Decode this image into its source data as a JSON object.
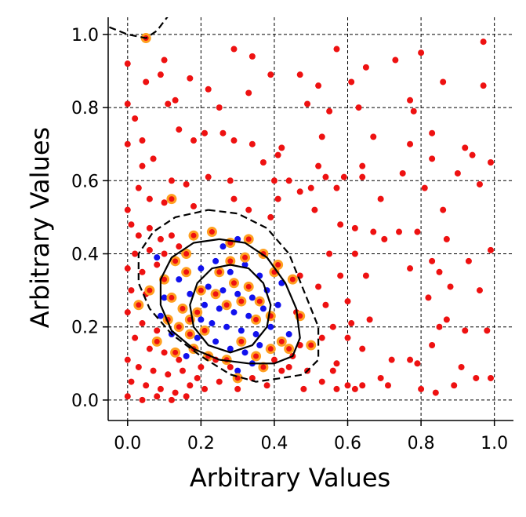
{
  "chart_data": {
    "type": "scatter",
    "xlabel": "Arbitrary Values",
    "ylabel": "Arbitrary Values",
    "xlim": [
      -0.053,
      1.052
    ],
    "ylim": [
      -0.056,
      1.047
    ],
    "xticks": [
      {
        "value": 0,
        "label": "0.0"
      },
      {
        "value": 0.2,
        "label": "0.2"
      },
      {
        "value": 0.4,
        "label": "0.4"
      },
      {
        "value": 0.6,
        "label": "0.6"
      },
      {
        "value": 0.8,
        "label": "0.8"
      },
      {
        "value": 1,
        "label": "1.0"
      }
    ],
    "yticks": [
      {
        "value": 0,
        "label": "0.0"
      },
      {
        "value": 0.2,
        "label": "0.2"
      },
      {
        "value": 0.4,
        "label": "0.4"
      },
      {
        "value": 0.6,
        "label": "0.6"
      },
      {
        "value": 0.8,
        "label": "0.8"
      },
      {
        "value": 1,
        "label": "1.0"
      }
    ],
    "grid": true,
    "series": [
      {
        "color": "#ee1111",
        "x": [
          0.05,
          0.1,
          0.0,
          0.09,
          0.05,
          0.17,
          0.29,
          0.34,
          0.39,
          0.47,
          0.57,
          0.52,
          0.55,
          0.49,
          0.61,
          0.73,
          0.77,
          0.8,
          0.86,
          0.97,
          0.97,
          0.78,
          0.65,
          0.63,
          0.0,
          0.02,
          0.11,
          0.13,
          0.22,
          0.33,
          0.25,
          0.14,
          0.21,
          0.26,
          0.0,
          0.04,
          0.18,
          0.29,
          0.34,
          0.42,
          0.53,
          0.67,
          0.77,
          0.83,
          0.92,
          0.94,
          0.99,
          0.83,
          0.96,
          0.9,
          0.81,
          0.75,
          0.64,
          0.69,
          0.64,
          0.52,
          0.54,
          0.4,
          0.44,
          0.47,
          0.5,
          0.57,
          0.59,
          0.37,
          0.41,
          0.04,
          0.07,
          0.12,
          0.16,
          0.22,
          0.28,
          0.03,
          0.1,
          0.0,
          0.06,
          0.18,
          0.29,
          0.33,
          0.41,
          0.39,
          0.51,
          0.58,
          0.62,
          0.67,
          0.7,
          0.74,
          0.79,
          0.86,
          0.87,
          0.55,
          0.62,
          0.83,
          0.77,
          0.85,
          0.93,
          0.99,
          0.88,
          0.96,
          0.65,
          0.58,
          0.52,
          0.6,
          0.54,
          0.47,
          0.46,
          0.56,
          0.66,
          0.82,
          0.87,
          0.85,
          0.92,
          0.98,
          0.83,
          0.77,
          0.72,
          0.79,
          0.6,
          0.61,
          0.53,
          0.47,
          0.64,
          0.69,
          0.64,
          0.71,
          0.62,
          0.6,
          0.56,
          0.57,
          0.53,
          0.49,
          0.48,
          0.84,
          0.8,
          0.89,
          0.95,
          0.99,
          0.91,
          0.57,
          0.44,
          0.01,
          0.03,
          0.06,
          0.09,
          0.12,
          0.02,
          0.06,
          0.1,
          0.14,
          0.0,
          0.04,
          0.08,
          0.01,
          0.05,
          0.0,
          0.04,
          0.08,
          0.02,
          0.06,
          0.1,
          0.0,
          0.03,
          0.07,
          0.11,
          0.15,
          0.19,
          0.01,
          0.05,
          0.09,
          0.13,
          0.17,
          0.21,
          0.25,
          0.0,
          0.04,
          0.08,
          0.12,
          0.16,
          0.28,
          0.24,
          0.2,
          0.14,
          0.3,
          0.34,
          0.38,
          0.42,
          0.45,
          0.4
        ],
        "values": [
          0.99,
          0.93,
          0.92,
          0.89,
          0.87,
          0.88,
          0.96,
          0.94,
          0.89,
          0.89,
          0.96,
          0.86,
          0.79,
          0.81,
          0.87,
          0.93,
          0.82,
          0.95,
          0.87,
          0.98,
          0.86,
          0.79,
          0.91,
          0.8,
          0.81,
          0.77,
          0.81,
          0.82,
          0.85,
          0.84,
          0.8,
          0.74,
          0.73,
          0.73,
          0.7,
          0.71,
          0.71,
          0.71,
          0.7,
          0.69,
          0.72,
          0.72,
          0.7,
          0.73,
          0.69,
          0.67,
          0.65,
          0.66,
          0.59,
          0.62,
          0.58,
          0.62,
          0.61,
          0.55,
          0.64,
          0.64,
          0.61,
          0.6,
          0.6,
          0.57,
          0.58,
          0.58,
          0.61,
          0.65,
          0.67,
          0.64,
          0.66,
          0.6,
          0.59,
          0.61,
          0.6,
          0.58,
          0.54,
          0.52,
          0.55,
          0.53,
          0.55,
          0.52,
          0.55,
          0.5,
          0.52,
          0.48,
          0.47,
          0.46,
          0.44,
          0.46,
          0.46,
          0.52,
          0.44,
          0.4,
          0.4,
          0.38,
          0.36,
          0.35,
          0.38,
          0.41,
          0.31,
          0.3,
          0.34,
          0.34,
          0.31,
          0.27,
          0.26,
          0.34,
          0.24,
          0.2,
          0.22,
          0.28,
          0.22,
          0.2,
          0.19,
          0.19,
          0.15,
          0.11,
          0.11,
          0.1,
          0.17,
          0.21,
          0.17,
          0.15,
          0.14,
          0.06,
          0.04,
          0.04,
          0.03,
          0.04,
          0.08,
          0.03,
          0.05,
          0.08,
          0.03,
          0.02,
          0.03,
          0.04,
          0.06,
          0.06,
          0.09,
          0.1,
          0.09,
          0.48,
          0.45,
          0.47,
          0.44,
          0.45,
          0.4,
          0.41,
          0.4,
          0.42,
          0.36,
          0.35,
          0.37,
          0.3,
          0.29,
          0.24,
          0.21,
          0.19,
          0.17,
          0.14,
          0.13,
          0.11,
          0.09,
          0.08,
          0.07,
          0.08,
          0.06,
          0.05,
          0.04,
          0.03,
          0.02,
          0.04,
          0.03,
          0.05,
          0.01,
          0.0,
          0.01,
          0.0,
          0.01,
          0.09,
          0.11,
          0.09,
          0.11,
          0.03,
          0.06,
          0.04,
          0.08,
          0.12,
          0.11
        ]
      },
      {
        "color": "#1111ee",
        "x": [
          0.2,
          0.24,
          0.28,
          0.32,
          0.36,
          0.22,
          0.26,
          0.3,
          0.34,
          0.38,
          0.21,
          0.25,
          0.29,
          0.33,
          0.37,
          0.41,
          0.23,
          0.27,
          0.31,
          0.35,
          0.39,
          0.19,
          0.24,
          0.28,
          0.32,
          0.36,
          0.1,
          0.14,
          0.12,
          0.16,
          0.3,
          0.34,
          0.44,
          0.42,
          0.09,
          0.08,
          0.26,
          0.3,
          0.17,
          0.2
        ],
        "values": [
          0.36,
          0.38,
          0.35,
          0.37,
          0.34,
          0.31,
          0.3,
          0.29,
          0.28,
          0.3,
          0.26,
          0.25,
          0.24,
          0.23,
          0.25,
          0.26,
          0.21,
          0.2,
          0.19,
          0.18,
          0.2,
          0.17,
          0.16,
          0.14,
          0.13,
          0.15,
          0.28,
          0.33,
          0.18,
          0.12,
          0.08,
          0.1,
          0.18,
          0.32,
          0.23,
          0.39,
          0.42,
          0.44,
          0.29,
          0.22
        ]
      },
      {
        "color": "#ee1111",
        "edgecolor": "#ffa020",
        "x": [
          0.05,
          0.12,
          0.18,
          0.23,
          0.28,
          0.33,
          0.37,
          0.41,
          0.45,
          0.47,
          0.13,
          0.16,
          0.1,
          0.06,
          0.03,
          0.12,
          0.15,
          0.17,
          0.14,
          0.19,
          0.21,
          0.17,
          0.11,
          0.08,
          0.13,
          0.18,
          0.22,
          0.27,
          0.31,
          0.35,
          0.39,
          0.42,
          0.44,
          0.37,
          0.3,
          0.25,
          0.29,
          0.33,
          0.27,
          0.31,
          0.35,
          0.39,
          0.24,
          0.2,
          0.4,
          0.32,
          0.28,
          0.36,
          0.16,
          0.5
        ],
        "values": [
          0.99,
          0.55,
          0.45,
          0.46,
          0.43,
          0.44,
          0.4,
          0.37,
          0.33,
          0.23,
          0.38,
          0.35,
          0.33,
          0.3,
          0.26,
          0.28,
          0.25,
          0.22,
          0.2,
          0.24,
          0.19,
          0.18,
          0.22,
          0.16,
          0.13,
          0.14,
          0.12,
          0.11,
          0.16,
          0.12,
          0.14,
          0.16,
          0.14,
          0.09,
          0.06,
          0.35,
          0.32,
          0.31,
          0.26,
          0.27,
          0.22,
          0.23,
          0.29,
          0.3,
          0.35,
          0.39,
          0.38,
          0.27,
          0.4,
          0.15
        ]
      }
    ],
    "contours": [
      {
        "style": "dashed",
        "x": [
          0.22,
          0.3,
          0.38,
          0.44,
          0.48,
          0.52,
          0.52,
          0.48,
          0.42,
          0.35,
          0.28,
          0.2,
          0.12,
          0.06,
          0.03,
          0.03,
          0.07,
          0.13,
          0.22
        ],
        "values": [
          0.52,
          0.51,
          0.47,
          0.4,
          0.3,
          0.2,
          0.11,
          0.07,
          0.06,
          0.05,
          0.07,
          0.12,
          0.18,
          0.25,
          0.32,
          0.4,
          0.46,
          0.5,
          0.52
        ]
      },
      {
        "style": "dashed",
        "x": [
          -0.05,
          0.0,
          0.05,
          0.08,
          0.11
        ],
        "values": [
          1.02,
          1.0,
          0.99,
          1.01,
          1.05
        ]
      },
      {
        "style": "solid",
        "x": [
          0.25,
          0.32,
          0.38,
          0.43,
          0.46,
          0.47,
          0.45,
          0.4,
          0.33,
          0.25,
          0.18,
          0.12,
          0.09,
          0.09,
          0.12,
          0.18,
          0.25
        ],
        "values": [
          0.44,
          0.43,
          0.39,
          0.32,
          0.25,
          0.17,
          0.12,
          0.1,
          0.1,
          0.11,
          0.14,
          0.19,
          0.26,
          0.33,
          0.39,
          0.43,
          0.44
        ]
      },
      {
        "style": "solid",
        "x": [
          0.28,
          0.33,
          0.37,
          0.39,
          0.38,
          0.34,
          0.28,
          0.22,
          0.18,
          0.17,
          0.19,
          0.23,
          0.28
        ],
        "values": [
          0.37,
          0.36,
          0.32,
          0.26,
          0.2,
          0.15,
          0.13,
          0.15,
          0.2,
          0.26,
          0.32,
          0.36,
          0.37
        ]
      }
    ]
  }
}
